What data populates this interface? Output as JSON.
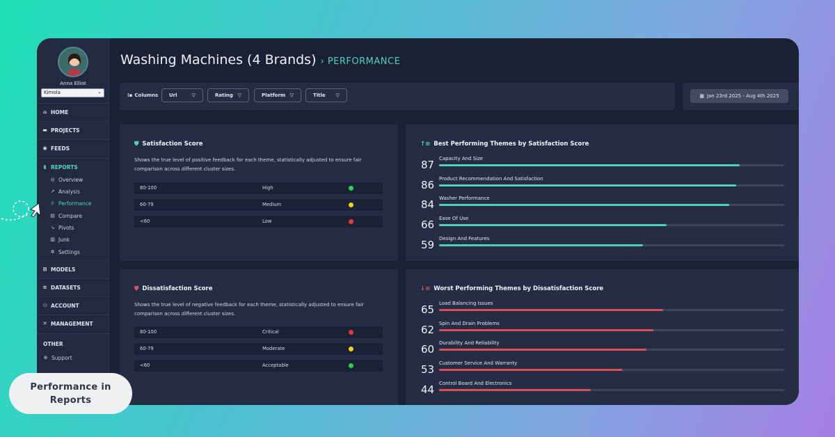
{
  "user": {
    "name": "Anna Elliot",
    "org": "Kimola"
  },
  "nav": {
    "home": "HOME",
    "projects": "PROJECTS",
    "feeds": "FEEDS",
    "reports": "REPORTS",
    "sub": [
      "Overview",
      "Analysis",
      "Performance",
      "Compare",
      "Pivots",
      "Junk",
      "Settings"
    ],
    "models": "MODELS",
    "datasets": "DATASETS",
    "account": "ACCOUNT",
    "management": "MANAGEMENT",
    "other": "OTHER",
    "support": "Support"
  },
  "header": {
    "title": "Washing Machines (4 Brands)",
    "breadcrumb": "PERFORMANCE"
  },
  "filters": {
    "columns_label": "Columns",
    "chips": [
      "Url",
      "Rating",
      "Platform",
      "Title"
    ],
    "date_range": "Jan 23rd 2025 - Aug 4th 2025"
  },
  "satisfaction": {
    "title": "Satisfaction Score",
    "desc": "Shows the true level of positive feedback for each theme, statistically adjusted to ensure fair comparison across different cluster sizes.",
    "rows": [
      {
        "range": "80-100",
        "level": "High"
      },
      {
        "range": "60-79",
        "level": "Medium"
      },
      {
        "range": "<60",
        "level": "Low"
      }
    ]
  },
  "dissatisfaction": {
    "title": "Dissatisfaction Score",
    "desc": "Shows the true level of negative feedback for each theme, statistically adjusted to ensure fair comparison across different cluster sizes.",
    "rows": [
      {
        "range": "80-100",
        "level": "Critical"
      },
      {
        "range": "60-79",
        "level": "Moderate"
      },
      {
        "range": "<60",
        "level": "Acceptable"
      }
    ]
  },
  "best": {
    "title": "Best Performing Themes by Satisfaction Score",
    "items": [
      {
        "score": "87",
        "name": "Capacity And Size"
      },
      {
        "score": "86",
        "name": "Product Recommendation And Satisfaction"
      },
      {
        "score": "84",
        "name": "Washer Performance"
      },
      {
        "score": "66",
        "name": "Ease Of Use"
      },
      {
        "score": "59",
        "name": "Design And Features"
      }
    ]
  },
  "worst": {
    "title": "Worst Performing Themes by Dissatisfaction Score",
    "items": [
      {
        "score": "65",
        "name": "Load Balancing Issues"
      },
      {
        "score": "62",
        "name": "Spin And Drain Problems"
      },
      {
        "score": "60",
        "name": "Durability And Reliability"
      },
      {
        "score": "53",
        "name": "Customer Service And Warranty"
      },
      {
        "score": "44",
        "name": "Control Board And Electronics"
      }
    ]
  },
  "caption": {
    "line1": "Performance in",
    "line2": "Reports"
  },
  "colors": {
    "accent": "#4fd0bd",
    "bad": "#d9525a",
    "green": "#2fcf45",
    "yellow": "#f1d21b",
    "red": "#e23a3a"
  }
}
